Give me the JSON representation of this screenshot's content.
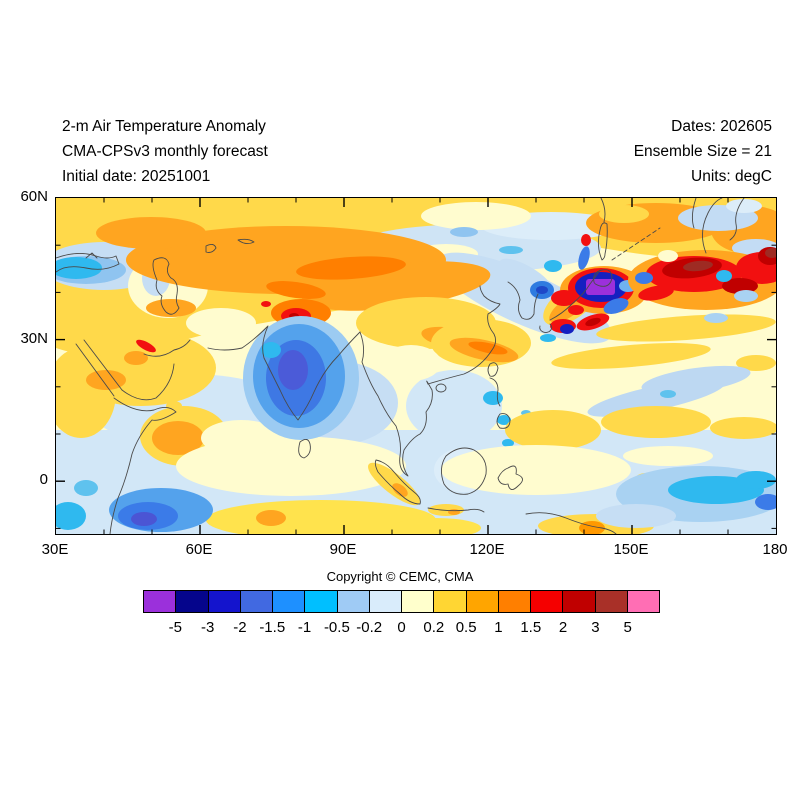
{
  "header": {
    "left": [
      "2-m Air Temperature Anomaly",
      "CMA-CPSv3 monthly forecast",
      "Initial date: 20251001"
    ],
    "right": [
      "Dates: 202605",
      "Ensemble Size = 21",
      "Units: degC"
    ]
  },
  "footer": {
    "copyright": "Copyright © CEMC, CMA"
  },
  "chart_data": {
    "type": "heatmap",
    "title": "2-m Air Temperature Anomaly",
    "model": "CMA-CPSv3 monthly forecast",
    "initial_date": "20251001",
    "forecast_dates": "202605",
    "ensemble_size": 21,
    "units": "degC",
    "x_axis": {
      "label_ticks": [
        "30E",
        "60E",
        "90E",
        "120E",
        "150E",
        "180"
      ],
      "values": [
        30,
        60,
        90,
        120,
        150,
        180
      ],
      "range": [
        30,
        180
      ],
      "minor_step": 10
    },
    "y_axis": {
      "label_ticks": [
        "60N",
        "30N",
        "0"
      ],
      "values": [
        60,
        30,
        0
      ],
      "range": [
        -11,
        60
      ],
      "minor_step": 10
    },
    "colorbar": {
      "levels": [
        "-5",
        "-3",
        "-2",
        "-1.5",
        "-1",
        "-0.5",
        "-0.2",
        "0",
        "0.2",
        "0.5",
        "1",
        "1.5",
        "2",
        "3",
        "5"
      ],
      "colors": [
        "#9B30DB",
        "#05058C",
        "#1414CD",
        "#4169E1",
        "#1E90FF",
        "#00BFFF",
        "#9FCBF5",
        "#D9ECFB",
        "#FFFFCC",
        "#FFD633",
        "#FFA500",
        "#FF7F00",
        "#F50000",
        "#C00000",
        "#A93028",
        "#FF6EB4"
      ]
    },
    "grid": false,
    "notable_features": [
      {
        "region": "Central Asia 50-110E, 40-57N",
        "anomaly_degC": "+0.5 to +2 warm band"
      },
      {
        "region": "Tibetan Plateau ~80E, 35N",
        "anomaly_degC": "+2 to +3 spot"
      },
      {
        "region": "India 72-90E, 8-28N",
        "anomaly_degC": "-1 to -2 cold core"
      },
      {
        "region": "Sea of Japan / N Honshu ~143E, 41N",
        "anomaly_degC": "below -5 cold core (purple)"
      },
      {
        "region": "NW Pacific 150-180E, 35-45N",
        "anomaly_degC": "+2 to +5 warm chain"
      },
      {
        "region": "W Indian Ocean ~48E, 4-10S",
        "anomaly_degC": "-1 to -2 cold blob"
      },
      {
        "region": "Horn of Africa coast ~48E, 0-5N",
        "anomaly_degC": "+1 to +1.5"
      },
      {
        "region": "Equatorial Indian Ocean ~85E, 5-9S",
        "anomaly_degC": "+0.5 to +1.5 band"
      },
      {
        "region": "SW Pacific 155-180E, 0-8S",
        "anomaly_degC": "-0.5 to -1.5"
      }
    ]
  }
}
